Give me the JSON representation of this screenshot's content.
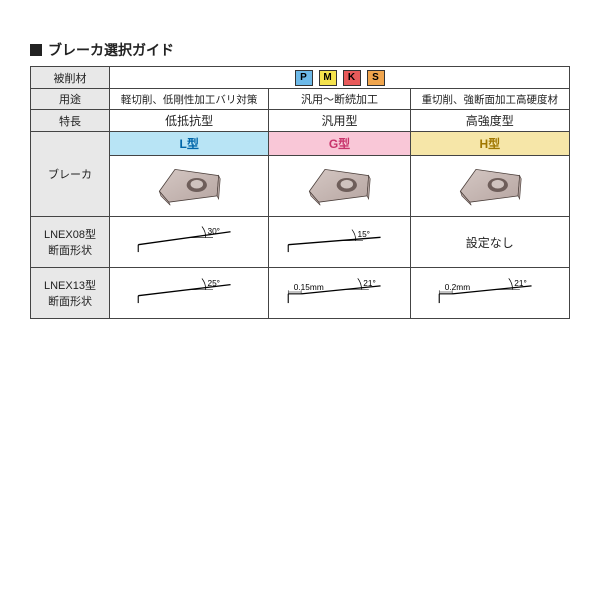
{
  "title": "ブレーカ選択ガイド",
  "rows": {
    "material": "被削材",
    "use": "用途",
    "feature": "特長",
    "breaker": "ブレーカ",
    "lnex08": "LNEX08型\n断面形状",
    "lnex13": "LNEX13型\n断面形状"
  },
  "iso": [
    {
      "letter": "P",
      "bg": "#6db9e8"
    },
    {
      "letter": "M",
      "bg": "#f4e24d"
    },
    {
      "letter": "K",
      "bg": "#e85a5a"
    },
    {
      "letter": "S",
      "bg": "#f0a54d"
    }
  ],
  "columns": [
    {
      "key": "L",
      "type_label": "L型",
      "type_bg": "#b8e4f5",
      "type_color": "#0066aa",
      "use": "軽切削、低剛性加工バリ対策",
      "feature": "低抵抗型",
      "lnex08": {
        "angle": "30°",
        "land": null,
        "present": true,
        "slope": -14
      },
      "lnex13": {
        "angle": "25°",
        "land": null,
        "present": true,
        "slope": -12
      }
    },
    {
      "key": "G",
      "type_label": "G型",
      "type_bg": "#f9c7d7",
      "type_color": "#c8336b",
      "use": "汎用～断続加工",
      "feature": "汎用型",
      "lnex08": {
        "angle": "15°",
        "land": null,
        "present": true,
        "slope": -8
      },
      "lnex13": {
        "angle": "21°",
        "land": "0.15mm",
        "present": true,
        "slope": -10
      }
    },
    {
      "key": "H",
      "type_label": "H型",
      "type_bg": "#f6e6a8",
      "type_color": "#a07700",
      "use": "重切削、強断面加工高硬度材",
      "feature": "高強度型",
      "lnex08": {
        "present": false,
        "none_text": "設定なし"
      },
      "lnex13": {
        "angle": "21°",
        "land": "0.2mm",
        "present": true,
        "slope": -10
      }
    }
  ],
  "insert_colors": {
    "body": "#b7a6a2",
    "body_light": "#d4c7c3",
    "hole": "#6e5e5a",
    "hole_inner": "#cfc3bf",
    "edge": "#4a3e3a"
  },
  "profile_colors": {
    "line": "#000000",
    "arc": "#000000"
  }
}
